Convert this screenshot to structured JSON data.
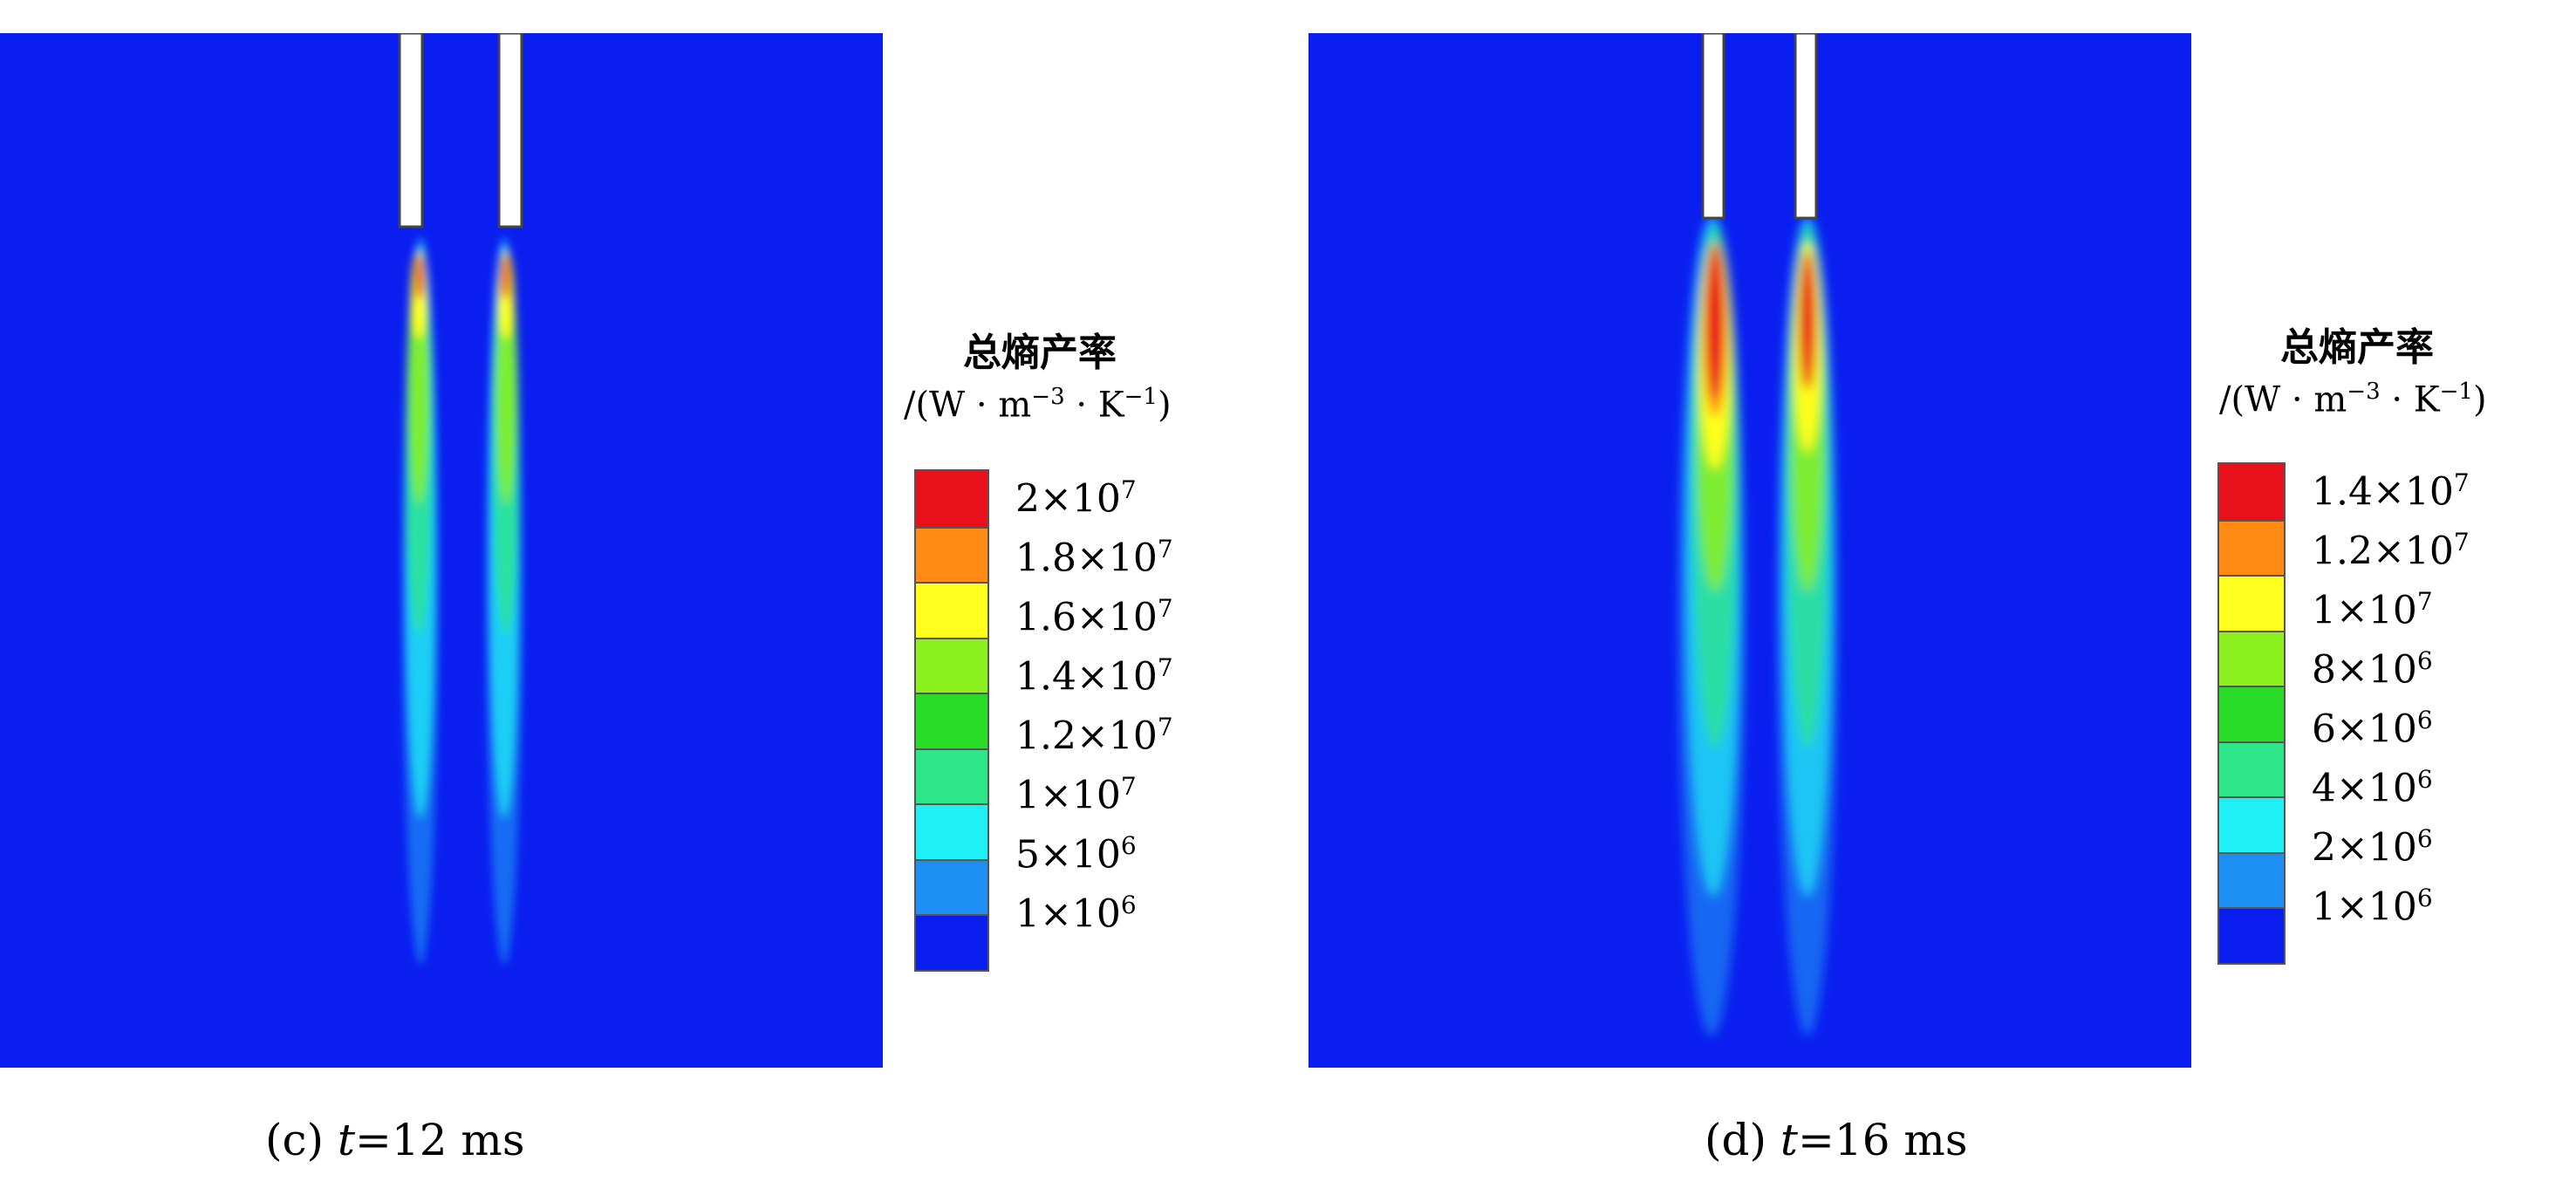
{
  "panels": [
    {
      "id": "c",
      "caption": {
        "prefix": "(c) ",
        "var": "t",
        "rest": "=12 ms"
      },
      "legend": {
        "title": "总熵产率",
        "unit": {
          "a": "/(W · m",
          "b": "−3",
          "c": " · K",
          "d": "−1",
          "e": ")"
        },
        "colors": [
          "#e8101a",
          "#ff8a14",
          "#ffff1e",
          "#8cf01e",
          "#28dc28",
          "#2ee68a",
          "#1ef0f5",
          "#1e8ff5",
          "#0a1ef0"
        ],
        "labels": [
          {
            "m": "2×10",
            "e": "7"
          },
          {
            "m": "1.8×10",
            "e": "7"
          },
          {
            "m": "1.6×10",
            "e": "7"
          },
          {
            "m": "1.4×10",
            "e": "7"
          },
          {
            "m": "1.2×10",
            "e": "7"
          },
          {
            "m": "1×10",
            "e": "7"
          },
          {
            "m": "5×10",
            "e": "6"
          },
          {
            "m": "1×10",
            "e": "6"
          }
        ]
      }
    },
    {
      "id": "d",
      "caption": {
        "prefix": "(d) ",
        "var": "t",
        "rest": "=16 ms"
      },
      "legend": {
        "title": "总熵产率",
        "unit": {
          "a": "/(W · m",
          "b": "−3",
          "c": " · K",
          "d": "−1",
          "e": ")"
        },
        "colors": [
          "#e8101a",
          "#ff8a14",
          "#ffff1e",
          "#8cf01e",
          "#28dc28",
          "#2ee68a",
          "#1ef0f5",
          "#1e8ff5",
          "#0a1ef0"
        ],
        "labels": [
          {
            "m": "1.4×10",
            "e": "7"
          },
          {
            "m": "1.2×10",
            "e": "7"
          },
          {
            "m": "1×10",
            "e": "7"
          },
          {
            "m": "8×10",
            "e": "6"
          },
          {
            "m": "6×10",
            "e": "6"
          },
          {
            "m": "4×10",
            "e": "6"
          },
          {
            "m": "2×10",
            "e": "6"
          },
          {
            "m": "1×10",
            "e": "6"
          }
        ]
      }
    }
  ]
}
